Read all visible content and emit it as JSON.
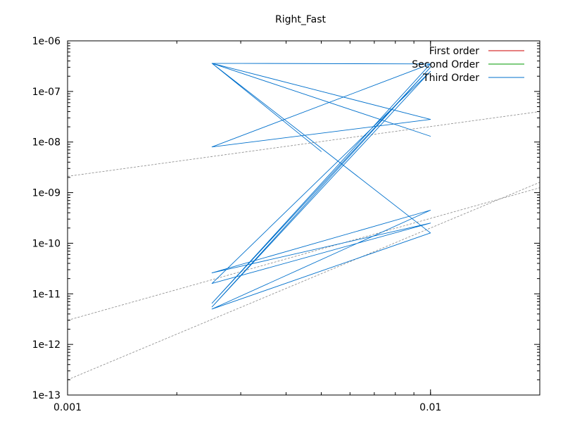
{
  "chart_data": {
    "type": "line",
    "title": "Right_Fast",
    "xlabel": "",
    "ylabel": "",
    "xscale": "log",
    "yscale": "log",
    "xlim": [
      0.001,
      0.02
    ],
    "ylim": [
      1e-13,
      1e-06
    ],
    "grid": false,
    "legend_position": "top-right",
    "x_ticks": [
      {
        "value": 0.001,
        "label": "0.001"
      },
      {
        "value": 0.01,
        "label": "0.01"
      }
    ],
    "y_ticks": [
      {
        "value": 1e-13,
        "label": "1e-13"
      },
      {
        "value": 1e-12,
        "label": "1e-12"
      },
      {
        "value": 1e-11,
        "label": "1e-11"
      },
      {
        "value": 1e-10,
        "label": "1e-10"
      },
      {
        "value": 1e-09,
        "label": "1e-09"
      },
      {
        "value": 1e-08,
        "label": "1e-08"
      },
      {
        "value": 1e-07,
        "label": "1e-07"
      },
      {
        "value": 1e-06,
        "label": "1e-06"
      }
    ],
    "legend": [
      {
        "name": "First order",
        "color": "#cc0000"
      },
      {
        "name": "Second Order",
        "color": "#009900"
      },
      {
        "name": "Third Order",
        "color": "#0070cc"
      }
    ],
    "series": [
      {
        "name": "Third Order",
        "color": "#0070cc",
        "x": [
          0.0025,
          0.01,
          0.0025,
          0.01,
          0.0025,
          0.01,
          0.0025,
          0.01,
          0.0025,
          0.01,
          0.0025,
          0.01,
          0.0025,
          0.01,
          0.0025,
          0.01,
          0.0025,
          0.01,
          0.0025,
          0.005,
          0.0025
        ],
        "y": [
          3.6e-07,
          3.5e-07,
          3.6e-07,
          1.3e-08,
          3.6e-07,
          2.8e-08,
          8e-09,
          3.5e-07,
          6.5e-12,
          3e-07,
          5.5e-12,
          2.5e-07,
          1.6e-11,
          2.5e-10,
          2.6e-11,
          4.5e-10,
          5e-12,
          1.6e-10,
          3.6e-07,
          6.5e-09,
          3.6e-07
        ]
      }
    ],
    "reference_lines": [
      {
        "x": [
          0.001,
          0.02
        ],
        "y": [
          2.1e-09,
          4e-08
        ],
        "color": "#888888",
        "dash": true
      },
      {
        "x": [
          0.001,
          0.02
        ],
        "y": [
          3e-12,
          1.25e-09
        ],
        "color": "#888888",
        "dash": true
      },
      {
        "x": [
          0.001,
          0.02
        ],
        "y": [
          2e-13,
          1.6e-09
        ],
        "color": "#888888",
        "dash": true
      }
    ]
  }
}
